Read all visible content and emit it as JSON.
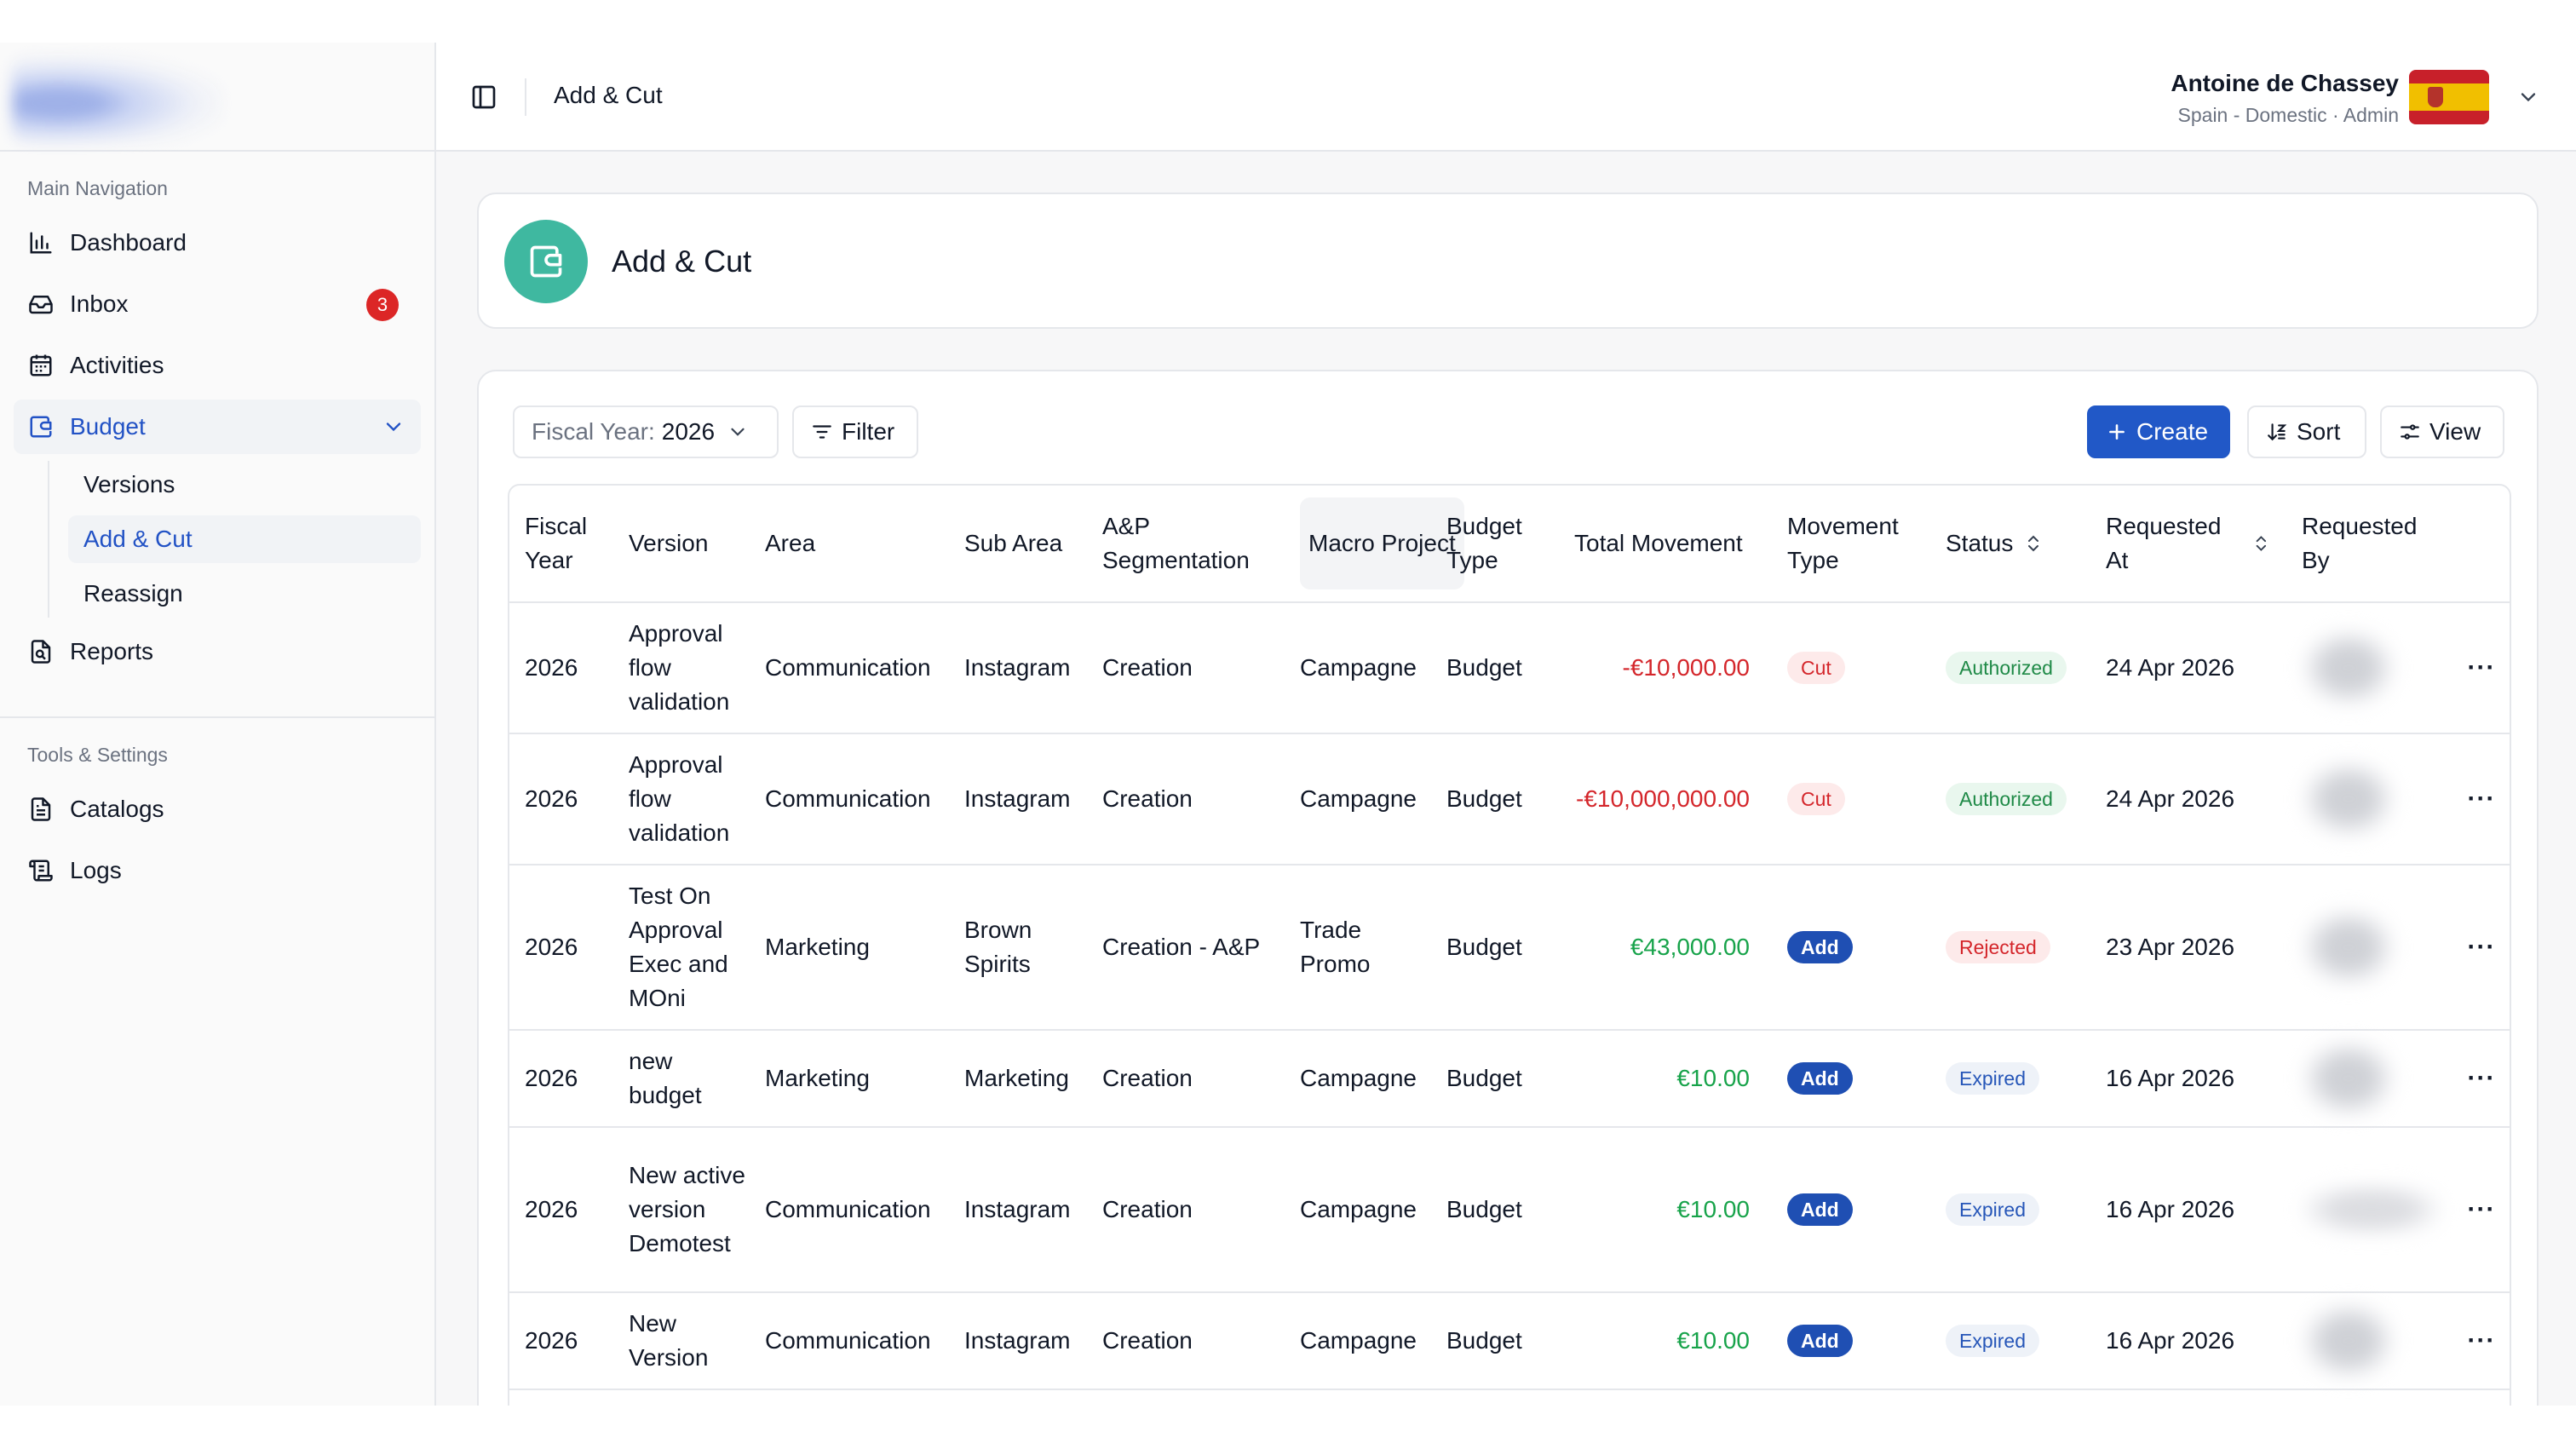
{
  "sidebar": {
    "main_nav_title": "Main Navigation",
    "items": [
      {
        "label": "Dashboard",
        "icon": "bar-chart-icon"
      },
      {
        "label": "Inbox",
        "icon": "inbox-icon",
        "badge": "3"
      },
      {
        "label": "Activities",
        "icon": "calendar-icon"
      },
      {
        "label": "Budget",
        "icon": "wallet-icon"
      },
      {
        "label": "Reports",
        "icon": "file-icon"
      }
    ],
    "budget_sub": [
      "Versions",
      "Add & Cut",
      "Reassign"
    ],
    "tools_title": "Tools & Settings",
    "tools": [
      {
        "label": "Catalogs",
        "icon": "document-icon"
      },
      {
        "label": "Logs",
        "icon": "scroll-icon"
      }
    ]
  },
  "topbar": {
    "title": "Add & Cut",
    "user_name": "Antoine de Chassey",
    "user_sub": "Spain - Domestic · Admin"
  },
  "page": {
    "title": "Add & Cut"
  },
  "toolbar": {
    "fiscal_label": "Fiscal Year:",
    "fiscal_value": "2026",
    "filter": "Filter",
    "create": "Create",
    "sort": "Sort",
    "view": "View"
  },
  "table": {
    "headers": {
      "fiscal_year": "Fiscal Year",
      "version": "Version",
      "area": "Area",
      "sub_area": "Sub Area",
      "segmentation": "A&P Segmentation",
      "macro_project": "Macro Project",
      "budget_type": "Budget Type",
      "total_movement": "Total Movement",
      "movement_type": "Movement Type",
      "status": "Status",
      "requested_at": "Requested At",
      "requested_by": "Requested By"
    },
    "rows": [
      {
        "fy": "2026",
        "version": "Approval flow validation",
        "area": "Communication",
        "sub_area": "Instagram",
        "seg": "Creation",
        "macro": "Campagne",
        "budget_type": "Budget",
        "total": "-€10,000.00",
        "move": "Cut",
        "status": "Authorized",
        "requested_at": "24 Apr 2026",
        "more": "···"
      },
      {
        "fy": "2026",
        "version": "Approval flow validation",
        "area": "Communication",
        "sub_area": "Instagram",
        "seg": "Creation",
        "macro": "Campagne",
        "budget_type": "Budget",
        "total": "-€10,000,000.00",
        "move": "Cut",
        "status": "Authorized",
        "requested_at": "24 Apr 2026",
        "more": "···"
      },
      {
        "fy": "2026",
        "version": "Test On Approval Exec and MOni",
        "area": "Marketing",
        "sub_area": "Brown Spirits",
        "seg": "Creation - A&P",
        "macro": "Trade Promo",
        "budget_type": "Budget",
        "total": "€43,000.00",
        "move": "Add",
        "status": "Rejected",
        "requested_at": "23 Apr 2026",
        "more": "···"
      },
      {
        "fy": "2026",
        "version": "new budget",
        "area": "Marketing",
        "sub_area": "Marketing",
        "seg": "Creation",
        "macro": "Campagne",
        "budget_type": "Budget",
        "total": "€10.00",
        "move": "Add",
        "status": "Expired",
        "requested_at": "16 Apr 2026",
        "more": "···"
      },
      {
        "fy": "2026",
        "version": "New active version Demotest",
        "area": "Communication",
        "sub_area": "Instagram",
        "seg": "Creation",
        "macro": "Campagne",
        "budget_type": "Budget",
        "total": "€10.00",
        "move": "Add",
        "status": "Expired",
        "requested_at": "16 Apr 2026",
        "more": "···"
      },
      {
        "fy": "2026",
        "version": "New Version",
        "area": "Communication",
        "sub_area": "Instagram",
        "seg": "Creation",
        "macro": "Campagne",
        "budget_type": "Budget",
        "total": "€10.00",
        "move": "Add",
        "status": "Expired",
        "requested_at": "16 Apr 2026",
        "more": "···"
      }
    ]
  },
  "colors": {
    "accent": "#2158c7",
    "header_icon_bg": "#3fb8a0",
    "negative": "#d4262b",
    "positive": "#17a34a",
    "badge": "#dc2626"
  }
}
